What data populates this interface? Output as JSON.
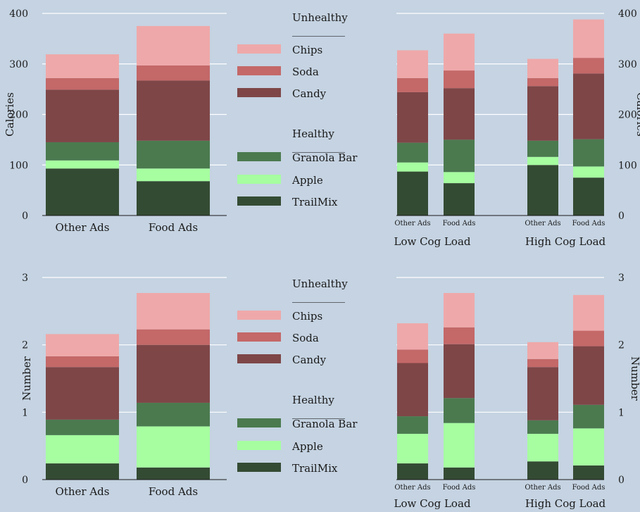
{
  "colors": {
    "background": "#c5d3e2",
    "grid": "#ffffff",
    "TrailMix": "#344b33",
    "Apple": "#a6fea0",
    "Granola Bar": "#4b7a4f",
    "Candy": "#7e4647",
    "Soda": "#c46868",
    "Chips": "#efa8a9"
  },
  "legend": {
    "unhealthy_heading": "Unhealthy",
    "healthy_heading": "Healthy",
    "underline": "__________",
    "unhealthy_items": [
      "Chips",
      "Soda",
      "Candy"
    ],
    "healthy_items": [
      "Granola Bar",
      "Apple",
      "TrailMix"
    ]
  },
  "chart_data": [
    {
      "id": "calories-overall",
      "type": "bar",
      "stacked": true,
      "categories": [
        "Other Ads",
        "Food Ads"
      ],
      "ylabel": "Calories",
      "ylim": [
        0,
        400
      ],
      "yticks": [
        0,
        100,
        200,
        300,
        400
      ],
      "grid": true,
      "series": [
        {
          "name": "TrailMix",
          "values": [
            93,
            68
          ]
        },
        {
          "name": "Apple",
          "values": [
            16,
            25
          ]
        },
        {
          "name": "Granola Bar",
          "values": [
            36,
            55
          ]
        },
        {
          "name": "Candy",
          "values": [
            104,
            119
          ]
        },
        {
          "name": "Soda",
          "values": [
            23,
            30
          ]
        },
        {
          "name": "Chips",
          "values": [
            47,
            78
          ]
        }
      ]
    },
    {
      "id": "calories-by-load",
      "type": "bar",
      "stacked": true,
      "categories": [
        "Other Ads",
        "Food Ads",
        "Other Ads",
        "Food Ads"
      ],
      "groups": [
        "Low Cog Load",
        "High Cog Load"
      ],
      "ylabel": "Calories",
      "ylim": [
        0,
        400
      ],
      "yticks": [
        0,
        100,
        200,
        300,
        400
      ],
      "grid": true,
      "series": [
        {
          "name": "TrailMix",
          "values": [
            87,
            64,
            100,
            75
          ]
        },
        {
          "name": "Apple",
          "values": [
            18,
            22,
            16,
            22
          ]
        },
        {
          "name": "Granola Bar",
          "values": [
            39,
            64,
            32,
            54
          ]
        },
        {
          "name": "Candy",
          "values": [
            100,
            102,
            108,
            130
          ]
        },
        {
          "name": "Soda",
          "values": [
            28,
            35,
            16,
            31
          ]
        },
        {
          "name": "Chips",
          "values": [
            55,
            73,
            38,
            76
          ]
        }
      ]
    },
    {
      "id": "number-overall",
      "type": "bar",
      "stacked": true,
      "categories": [
        "Other Ads",
        "Food Ads"
      ],
      "ylabel": "Number",
      "ylim": [
        0,
        3
      ],
      "yticks": [
        0,
        1,
        2,
        3
      ],
      "grid": true,
      "series": [
        {
          "name": "TrailMix",
          "values": [
            0.24,
            0.18
          ]
        },
        {
          "name": "Apple",
          "values": [
            0.42,
            0.61
          ]
        },
        {
          "name": "Granola Bar",
          "values": [
            0.23,
            0.35
          ]
        },
        {
          "name": "Candy",
          "values": [
            0.78,
            0.86
          ]
        },
        {
          "name": "Soda",
          "values": [
            0.16,
            0.23
          ]
        },
        {
          "name": "Chips",
          "values": [
            0.33,
            0.54
          ]
        }
      ]
    },
    {
      "id": "number-by-load",
      "type": "bar",
      "stacked": true,
      "categories": [
        "Other Ads",
        "Food Ads",
        "Other Ads",
        "Food Ads"
      ],
      "groups": [
        "Low Cog Load",
        "High Cog Load"
      ],
      "ylabel": "Number",
      "ylim": [
        0,
        3
      ],
      "yticks": [
        0,
        1,
        2,
        3
      ],
      "grid": true,
      "series": [
        {
          "name": "TrailMix",
          "values": [
            0.24,
            0.18,
            0.27,
            0.21
          ]
        },
        {
          "name": "Apple",
          "values": [
            0.44,
            0.66,
            0.41,
            0.55
          ]
        },
        {
          "name": "Granola Bar",
          "values": [
            0.26,
            0.37,
            0.2,
            0.35
          ]
        },
        {
          "name": "Candy",
          "values": [
            0.79,
            0.8,
            0.79,
            0.87
          ]
        },
        {
          "name": "Soda",
          "values": [
            0.2,
            0.25,
            0.12,
            0.23
          ]
        },
        {
          "name": "Chips",
          "values": [
            0.39,
            0.51,
            0.25,
            0.53
          ]
        }
      ]
    }
  ]
}
